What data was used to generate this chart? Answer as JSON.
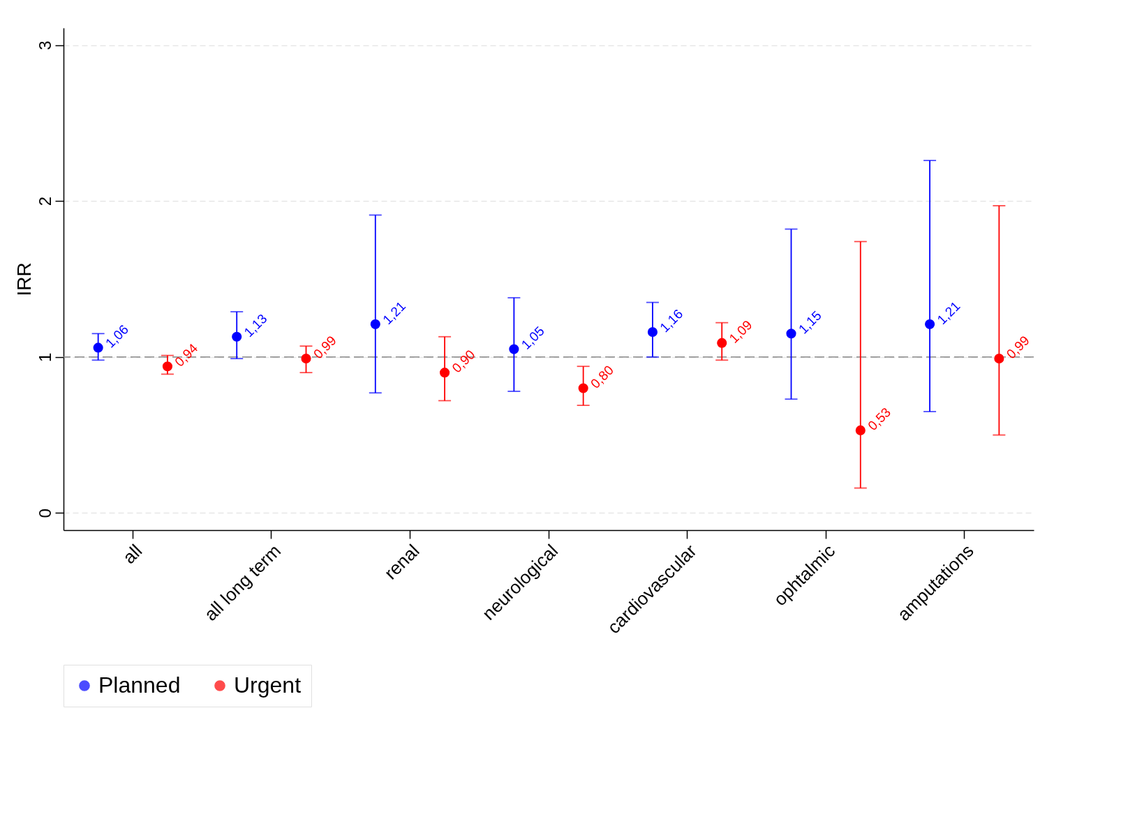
{
  "chart_data": {
    "type": "scatter",
    "ylabel": "IRR",
    "categories": [
      "all",
      "all long term",
      "renal",
      "neurological",
      "cardiovascular",
      "ophtalmic",
      "amputations"
    ],
    "series": [
      {
        "name": "Planned",
        "color": "#0000ff",
        "values": [
          1.06,
          1.13,
          1.21,
          1.05,
          1.16,
          1.15,
          1.21
        ],
        "errors": [
          [
            0.98,
            1.15
          ],
          [
            0.99,
            1.29
          ],
          [
            0.77,
            1.91
          ],
          [
            0.78,
            1.38
          ],
          [
            1.0,
            1.35
          ],
          [
            0.73,
            1.82
          ],
          [
            0.65,
            2.26
          ]
        ],
        "value_labels": [
          "1,06",
          "1,13",
          "1,21",
          "1,05",
          "1,16",
          "1,15",
          "1,21"
        ]
      },
      {
        "name": "Urgent",
        "color": "#ff0000",
        "values": [
          0.94,
          0.99,
          0.9,
          0.8,
          1.09,
          0.53,
          0.99
        ],
        "errors": [
          [
            0.89,
            1.01
          ],
          [
            0.9,
            1.07
          ],
          [
            0.72,
            1.13
          ],
          [
            0.69,
            0.94
          ],
          [
            0.98,
            1.22
          ],
          [
            0.16,
            1.74
          ],
          [
            0.5,
            1.97
          ]
        ],
        "value_labels": [
          "0,94",
          "0,99",
          "0,90",
          "0,80",
          "1,09",
          "0,53",
          "0,99"
        ]
      }
    ],
    "ylim": [
      -0.11,
      3.11
    ],
    "yticks": [
      0,
      1,
      2,
      3
    ],
    "grid": "y",
    "ref_lines": [
      {
        "axis": "y",
        "value": 1,
        "color": "#888888",
        "line_style": "dashed"
      }
    ],
    "legend": "bottom",
    "marker": "circle"
  }
}
